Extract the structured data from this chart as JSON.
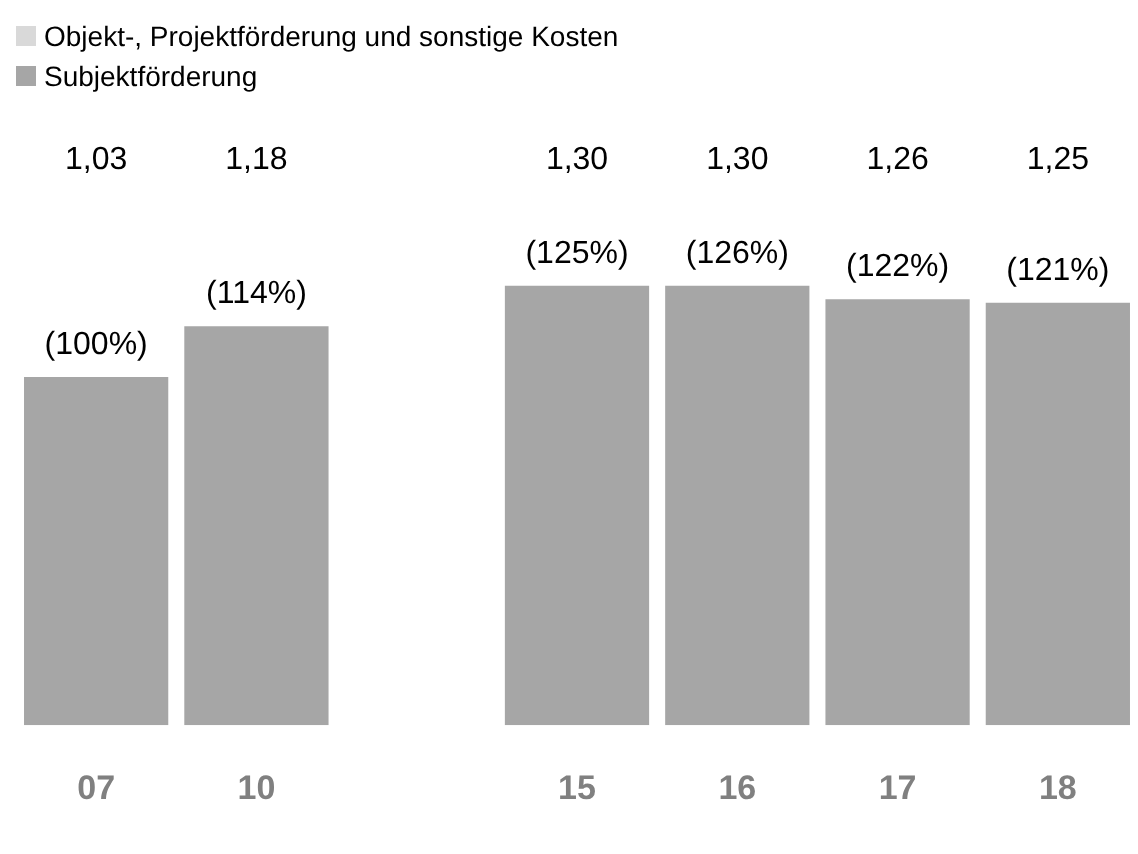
{
  "chart_data": {
    "type": "bar",
    "stacked": true,
    "legend": "top left",
    "categories": [
      "07",
      "10",
      null,
      "15",
      "16",
      "17",
      "18"
    ],
    "series": [
      {
        "name": "Subjektförderung",
        "color": "#a6a6a6",
        "values": [
          1.03,
          1.18,
          null,
          1.3,
          1.3,
          1.26,
          1.25
        ],
        "value_labels": [
          "1,03",
          "1,18",
          null,
          "1,30",
          "1,30",
          "1,26",
          "1,25"
        ]
      },
      {
        "name": "Objekt-, Projektförderung und sonstige Kosten",
        "color": "#d9d9d9",
        "values": [
          0,
          0,
          null,
          0,
          0,
          0,
          0
        ]
      }
    ],
    "annotations": [
      {
        "text": "(100%)",
        "x": "07",
        "y": 1.03
      },
      {
        "text": "(114%)",
        "x": "10",
        "y": 1.18
      },
      {
        "text": "(125%)",
        "x": "15",
        "y": 1.3
      },
      {
        "text": "(126%)",
        "x": "16",
        "y": 1.3
      },
      {
        "text": "(122%)",
        "x": "17",
        "y": 1.26
      },
      {
        "text": "(121%)",
        "x": "18",
        "y": 1.25
      }
    ]
  }
}
